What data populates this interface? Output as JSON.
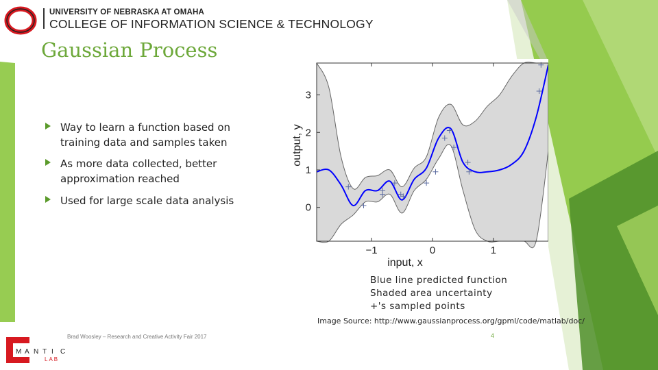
{
  "header": {
    "university": "UNIVERSITY OF NEBRASKA AT OMAHA",
    "college": "COLLEGE OF INFORMATION SCIENCE & TECHNOLOGY"
  },
  "slide": {
    "title": "Gaussian Process",
    "bullets": [
      {
        "text": "Way to learn a function based on training data and samples taken"
      },
      {
        "text": "As more data collected, better approximation reached"
      },
      {
        "text": "Used for large scale data analysis"
      }
    ],
    "caption": [
      "Blue line predicted function",
      "Shaded area uncertainty",
      "+'s sampled points"
    ],
    "image_source": "Image Source: http://www.gaussianprocess.org/gpml/code/matlab/doc/",
    "footer": "Brad Woosley – Research and Creative Activity Fair 2017",
    "page_number": "4"
  },
  "lab_logo": {
    "letters": [
      "M",
      "A",
      "N",
      "T",
      "I",
      "C"
    ],
    "lab": "LAB"
  },
  "colors": {
    "accent_green": "#6da83a",
    "unomaha_red": "#d71920",
    "predicted_line": "#0000ff",
    "uncertainty_band": "#d9d9d9"
  },
  "chart_data": {
    "type": "line",
    "xlabel": "input, x",
    "ylabel": "output, y",
    "xticks": [
      "−1",
      "0",
      "1"
    ],
    "yticks": [
      "0",
      "1",
      "2",
      "3"
    ],
    "xlim": [
      -1.9,
      1.9
    ],
    "ylim": [
      -0.9,
      3.85
    ],
    "grid": false,
    "series": [
      {
        "x": [
          -1.9,
          -1.7,
          -1.5,
          -1.3,
          -1.1,
          -0.9,
          -0.7,
          -0.5,
          -0.3,
          -0.1,
          0.1,
          0.3,
          0.5,
          0.7,
          0.9,
          1.1,
          1.3,
          1.5,
          1.7,
          1.9
        ],
        "y": [
          0.95,
          1.0,
          0.6,
          0.05,
          0.45,
          0.45,
          0.7,
          0.2,
          0.75,
          1.05,
          1.85,
          2.1,
          1.2,
          0.95,
          0.95,
          1.0,
          1.15,
          1.5,
          2.4,
          3.8
        ]
      }
    ],
    "band": {
      "x": [
        -1.9,
        -1.7,
        -1.5,
        -1.3,
        -1.1,
        -0.9,
        -0.7,
        -0.5,
        -0.3,
        -0.1,
        0.1,
        0.3,
        0.5,
        0.7,
        0.9,
        1.1,
        1.3,
        1.5,
        1.7,
        1.9
      ],
      "upper": [
        3.85,
        3.2,
        1.35,
        0.5,
        0.8,
        0.85,
        1.0,
        0.55,
        1.05,
        1.35,
        2.4,
        2.75,
        2.2,
        2.3,
        2.7,
        3.0,
        3.5,
        3.85,
        3.85,
        3.85
      ],
      "lower": [
        -0.9,
        -0.9,
        -0.45,
        -0.2,
        0.15,
        0.15,
        0.35,
        -0.15,
        0.45,
        0.75,
        1.3,
        1.65,
        0.45,
        -0.6,
        -0.9,
        -0.9,
        -0.9,
        -0.9,
        -0.9,
        1.5
      ]
    },
    "samples": {
      "x": [
        -1.38,
        -1.13,
        -0.82,
        -0.82,
        -0.62,
        -0.52,
        -0.48,
        -0.1,
        0.05,
        0.2,
        0.28,
        0.35,
        0.58,
        0.6,
        1.75,
        1.78
      ],
      "y": [
        0.55,
        0.05,
        0.45,
        0.35,
        0.65,
        0.35,
        0.3,
        0.65,
        0.95,
        1.85,
        2.05,
        1.6,
        1.2,
        0.95,
        3.1,
        3.8
      ]
    }
  }
}
